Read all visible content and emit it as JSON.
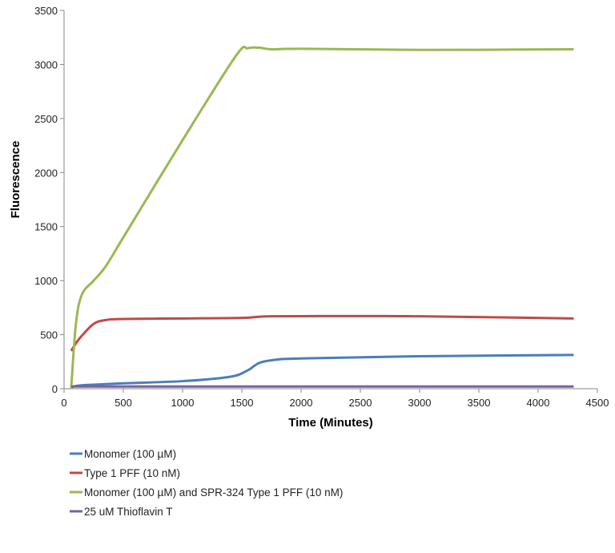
{
  "chart_data": {
    "type": "line",
    "title": "",
    "xlabel": "Time (Minutes)",
    "ylabel": "Fluorescence",
    "xlim": [
      0,
      4500
    ],
    "ylim": [
      0,
      3500
    ],
    "xticks": [
      0,
      500,
      1000,
      1500,
      2000,
      2500,
      3000,
      3500,
      4000,
      4500
    ],
    "yticks": [
      0,
      500,
      1000,
      1500,
      2000,
      2500,
      3000,
      3500
    ],
    "grid": false,
    "legend": "bottom",
    "series": [
      {
        "name": "Monomer (100 µM)",
        "color": "#4a7ebb",
        "x": [
          60,
          100,
          200,
          500,
          1000,
          1400,
          1550,
          1650,
          1800,
          2000,
          3000,
          4300
        ],
        "y": [
          10,
          25,
          35,
          50,
          70,
          110,
          170,
          240,
          270,
          280,
          300,
          312
        ]
      },
      {
        "name": "Type 1 PFF (10 nM)",
        "color": "#be4b48",
        "x": [
          60,
          100,
          150,
          250,
          350,
          500,
          1000,
          1500,
          1750,
          2500,
          3000,
          4300
        ],
        "y": [
          350,
          420,
          490,
          600,
          635,
          645,
          650,
          655,
          670,
          672,
          670,
          650
        ]
      },
      {
        "name": "Monomer (100 µM) and SPR-324 Type 1 PFF (10 nM)",
        "color": "#98b954",
        "x": [
          60,
          100,
          150,
          250,
          350,
          500,
          1000,
          1450,
          1550,
          1650,
          1750,
          2000,
          3000,
          4300
        ],
        "y": [
          0,
          600,
          870,
          1000,
          1130,
          1400,
          2300,
          3080,
          3150,
          3155,
          3140,
          3145,
          3135,
          3140
        ]
      },
      {
        "name": "25 uM Thioflavin T",
        "color": "#7d60a0",
        "x": [
          60,
          4300
        ],
        "y": [
          20,
          20
        ]
      }
    ]
  }
}
